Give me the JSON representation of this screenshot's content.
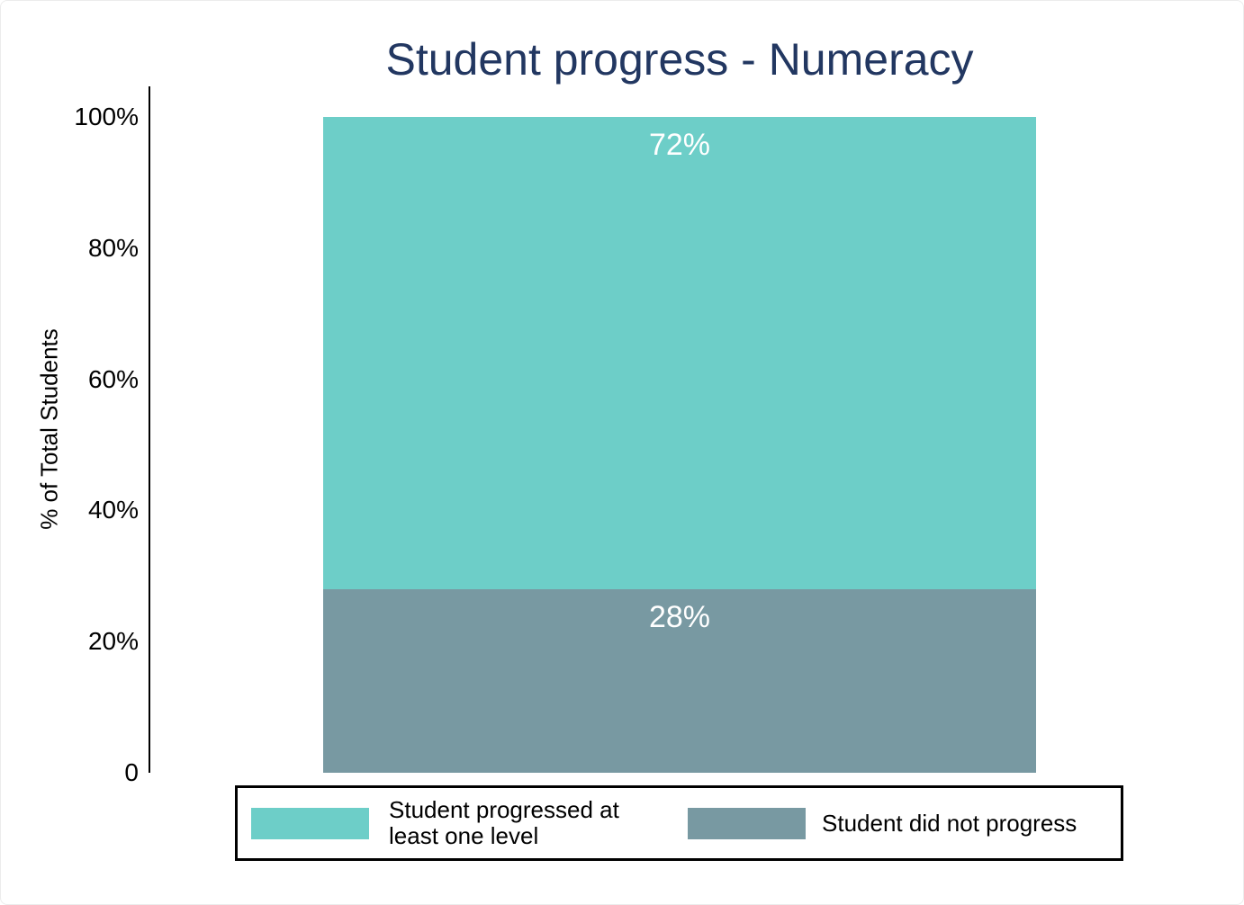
{
  "chart_data": {
    "type": "bar",
    "subtype": "100%-stacked-column",
    "title": "Student progress - Numeracy",
    "xlabel": "",
    "ylabel": "% of Total Students",
    "ylim": [
      0,
      100
    ],
    "yticks": [
      0,
      20,
      40,
      60,
      80,
      100
    ],
    "ytick_labels": [
      "0",
      "20%",
      "40%",
      "60%",
      "80%",
      "100%"
    ],
    "categories": [
      "Numeracy"
    ],
    "series": [
      {
        "key": "progressed",
        "name": "Student progressed at least one level",
        "values": [
          72
        ],
        "value_label": "72%",
        "color": "#6DCEC8"
      },
      {
        "key": "did-not-progress",
        "name": "Student did not progress",
        "values": [
          28
        ],
        "value_label": "28%",
        "color": "#7899A2"
      }
    ],
    "legend_position": "bottom",
    "grid": false
  },
  "colors": {
    "title": "#223761",
    "axis": "#000000",
    "tick_label": "#000000",
    "value_label": "#ffffff",
    "legend_border": "#000000",
    "legend_text": "#000000"
  }
}
